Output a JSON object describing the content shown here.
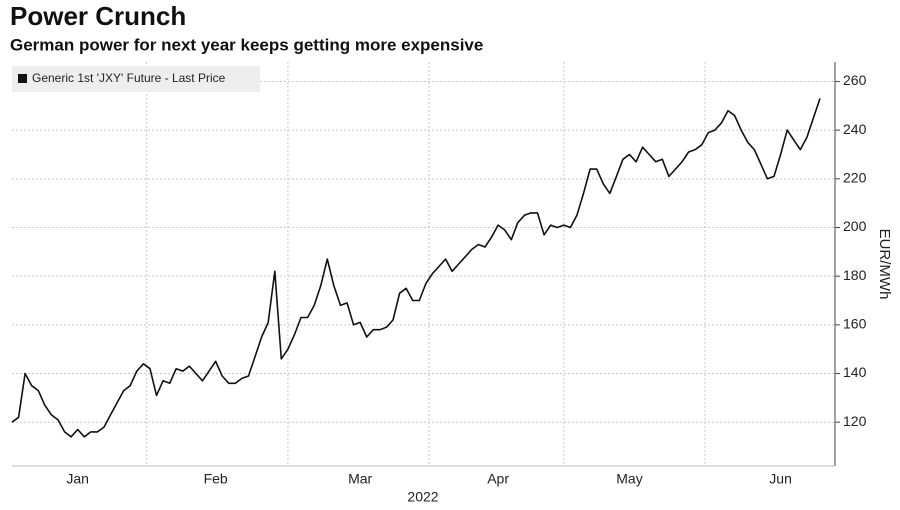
{
  "chart_data": {
    "type": "line",
    "title": "Power Crunch",
    "subtitle": "German power for next year keeps getting more expensive",
    "x_label": "2022",
    "y_label": "EUR/MWh",
    "categories": [
      null,
      null,
      null,
      null,
      null,
      null,
      null,
      null,
      null,
      null,
      "Jan",
      null,
      null,
      null,
      null,
      null,
      null,
      null,
      null,
      null,
      null,
      null,
      null,
      null,
      null,
      null,
      null,
      null,
      null,
      null,
      null,
      "Feb",
      null,
      null,
      null,
      null,
      null,
      null,
      null,
      null,
      null,
      null,
      null,
      null,
      null,
      null,
      null,
      null,
      null,
      null,
      null,
      null,
      null,
      "Mar",
      null,
      null,
      null,
      null,
      null,
      null,
      null,
      null,
      null,
      null,
      null,
      null,
      null,
      null,
      null,
      null,
      null,
      null,
      null,
      null,
      "Apr",
      null,
      null,
      null,
      null,
      null,
      null,
      null,
      null,
      null,
      null,
      null,
      null,
      null,
      null,
      null,
      null,
      null,
      null,
      null,
      "May",
      null,
      null,
      null,
      null,
      null,
      null,
      null,
      null,
      null,
      null,
      null,
      null,
      null,
      null,
      null,
      null,
      null,
      null,
      null,
      null,
      null,
      null,
      "Jun",
      null,
      null,
      null,
      null,
      null,
      null
    ],
    "series": [
      {
        "name": "Generic 1st 'JXY' Future - Last Price",
        "color": "#111111",
        "values": [
          120,
          122,
          140,
          135,
          133,
          127,
          123,
          121,
          116,
          114,
          117,
          114,
          116,
          116,
          118,
          123,
          128,
          133,
          135,
          141,
          144,
          142,
          131,
          137,
          136,
          142,
          141,
          143,
          140,
          137,
          141,
          145,
          139,
          136,
          136,
          138,
          139,
          147,
          155,
          161,
          182,
          146,
          150,
          156,
          163,
          163,
          168,
          176,
          187,
          176,
          168,
          169,
          160,
          161,
          155,
          158,
          158,
          159,
          162,
          173,
          175,
          170,
          170,
          177,
          181,
          184,
          187,
          182,
          185,
          188,
          191,
          193,
          192,
          196,
          201,
          199,
          195,
          202,
          205,
          206,
          206,
          197,
          201,
          200,
          201,
          200,
          205,
          214,
          224,
          224,
          218,
          214,
          221,
          228,
          230,
          227,
          233,
          230,
          227,
          228,
          221,
          224,
          227,
          231,
          232,
          234,
          239,
          240,
          243,
          248,
          246,
          240,
          235,
          232,
          226,
          220,
          221,
          230,
          240,
          236,
          232,
          237,
          245,
          253
        ]
      }
    ],
    "ylim": [
      102,
      268
    ],
    "yticks": [
      120,
      140,
      160,
      180,
      200,
      220,
      240,
      260
    ],
    "grid": true,
    "legend": "top-left"
  }
}
